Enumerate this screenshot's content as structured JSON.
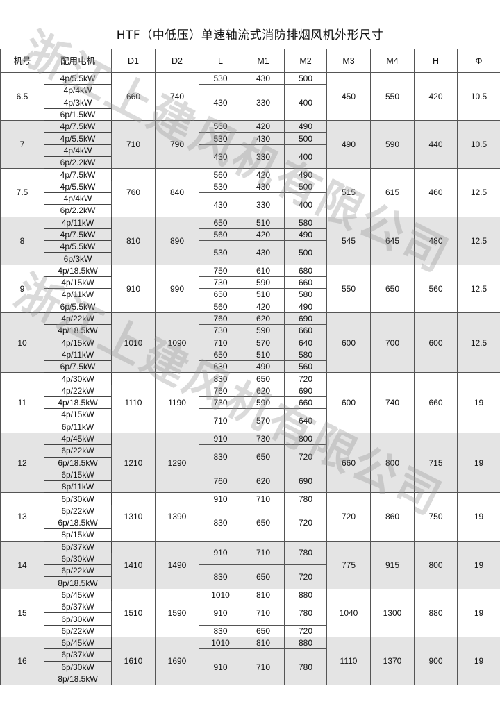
{
  "title": "HTF（中低压）单速轴流式消防排烟风机外形尺寸",
  "watermark": "浙江上建风机有限公司",
  "colors": {
    "shade": "#e4e4e4",
    "border": "#555555"
  },
  "headers": [
    "机号",
    "配用电机",
    "D1",
    "D2",
    "L",
    "M1",
    "M2",
    "M3",
    "M4",
    "H",
    "Φ"
  ],
  "groups": [
    {
      "model": "6.5",
      "motors": [
        "4p/5.5kW",
        "4p/4kW",
        "4p/3kW",
        "6p/1.5kW"
      ],
      "D1": "660",
      "D2": "740",
      "dims": [
        {
          "span": 1,
          "L": "530",
          "M1": "430",
          "M2": "500"
        },
        {
          "span": 3,
          "L": "430",
          "M1": "330",
          "M2": "400"
        }
      ],
      "M3": "450",
      "M4": "550",
      "H": "420",
      "phi": "10.5"
    },
    {
      "model": "7",
      "motors": [
        "4p/7.5kW",
        "4p/5.5kW",
        "4p/4kW",
        "6p/2.2kW"
      ],
      "D1": "710",
      "D2": "790",
      "dims": [
        {
          "span": 1,
          "L": "560",
          "M1": "420",
          "M2": "490"
        },
        {
          "span": 1,
          "L": "530",
          "M1": "430",
          "M2": "500"
        },
        {
          "span": 2,
          "L": "430",
          "M1": "330",
          "M2": "400"
        }
      ],
      "M3": "490",
      "M4": "590",
      "H": "440",
      "phi": "10.5"
    },
    {
      "model": "7.5",
      "motors": [
        "4p/7.5kW",
        "4p/5.5kW",
        "4p/4kW",
        "6p/2.2kW"
      ],
      "D1": "760",
      "D2": "840",
      "dims": [
        {
          "span": 1,
          "L": "560",
          "M1": "420",
          "M2": "490"
        },
        {
          "span": 1,
          "L": "530",
          "M1": "430",
          "M2": "500"
        },
        {
          "span": 2,
          "L": "430",
          "M1": "330",
          "M2": "400"
        }
      ],
      "M3": "515",
      "M4": "615",
      "H": "460",
      "phi": "12.5"
    },
    {
      "model": "8",
      "motors": [
        "4p/11kW",
        "4p/7.5kW",
        "4p/5.5kW",
        "6p/3kW"
      ],
      "D1": "810",
      "D2": "890",
      "dims": [
        {
          "span": 1,
          "L": "650",
          "M1": "510",
          "M2": "580"
        },
        {
          "span": 1,
          "L": "560",
          "M1": "420",
          "M2": "490"
        },
        {
          "span": 2,
          "L": "530",
          "M1": "430",
          "M2": "500"
        }
      ],
      "M3": "545",
      "M4": "645",
      "H": "480",
      "phi": "12.5"
    },
    {
      "model": "9",
      "motors": [
        "4p/18.5kW",
        "4p/15kW",
        "4p/11kW",
        "6p/5.5kW"
      ],
      "D1": "910",
      "D2": "990",
      "dims": [
        {
          "span": 1,
          "L": "750",
          "M1": "610",
          "M2": "680"
        },
        {
          "span": 1,
          "L": "730",
          "M1": "590",
          "M2": "660"
        },
        {
          "span": 1,
          "L": "650",
          "M1": "510",
          "M2": "580"
        },
        {
          "span": 1,
          "L": "560",
          "M1": "420",
          "M2": "490"
        }
      ],
      "M3": "550",
      "M4": "650",
      "H": "560",
      "phi": "12.5"
    },
    {
      "model": "10",
      "motors": [
        "4p/22kW",
        "4p/18.5kW",
        "4p/15kW",
        "4p/11kW",
        "6p/7.5kW"
      ],
      "D1": "1010",
      "D2": "1090",
      "dims": [
        {
          "span": 1,
          "L": "760",
          "M1": "620",
          "M2": "690"
        },
        {
          "span": 1,
          "L": "730",
          "M1": "590",
          "M2": "660"
        },
        {
          "span": 1,
          "L": "710",
          "M1": "570",
          "M2": "640"
        },
        {
          "span": 1,
          "L": "650",
          "M1": "510",
          "M2": "580"
        },
        {
          "span": 1,
          "L": "630",
          "M1": "490",
          "M2": "560"
        }
      ],
      "M3": "600",
      "M4": "700",
      "H": "600",
      "phi": "12.5"
    },
    {
      "model": "11",
      "motors": [
        "4p/30kW",
        "4p/22kW",
        "4p/18.5kW",
        "4p/15kW",
        "6p/11kW"
      ],
      "D1": "1110",
      "D2": "1190",
      "dims": [
        {
          "span": 1,
          "L": "830",
          "M1": "650",
          "M2": "720"
        },
        {
          "span": 1,
          "L": "760",
          "M1": "620",
          "M2": "690"
        },
        {
          "span": 1,
          "L": "730",
          "M1": "590",
          "M2": "660"
        },
        {
          "span": 2,
          "L": "710",
          "M1": "570",
          "M2": "640"
        }
      ],
      "M3": "600",
      "M4": "740",
      "H": "660",
      "phi": "19"
    },
    {
      "model": "12",
      "motors": [
        "4p/45kW",
        "6p/22kW",
        "6p/18.5kW",
        "6p/15kW",
        "8p/11kW"
      ],
      "D1": "1210",
      "D2": "1290",
      "dims": [
        {
          "span": 1,
          "L": "910",
          "M1": "730",
          "M2": "800"
        },
        {
          "span": 2,
          "L": "830",
          "M1": "650",
          "M2": "720"
        },
        {
          "span": 2,
          "L": "760",
          "M1": "620",
          "M2": "690"
        }
      ],
      "M3": "660",
      "M4": "800",
      "H": "715",
      "phi": "19"
    },
    {
      "model": "13",
      "motors": [
        "6p/30kW",
        "6p/22kW",
        "6p/18.5kW",
        "8p/15kW"
      ],
      "D1": "1310",
      "D2": "1390",
      "dims": [
        {
          "span": 1,
          "L": "910",
          "M1": "710",
          "M2": "780"
        },
        {
          "span": 3,
          "L": "830",
          "M1": "650",
          "M2": "720"
        }
      ],
      "M3": "720",
      "M4": "860",
      "H": "750",
      "phi": "19"
    },
    {
      "model": "14",
      "motors": [
        "6p/37kW",
        "6p/30kW",
        "6p/22kW",
        "8p/18.5kW"
      ],
      "D1": "1410",
      "D2": "1490",
      "dims": [
        {
          "span": 2,
          "L": "910",
          "M1": "710",
          "M2": "780"
        },
        {
          "span": 2,
          "L": "830",
          "M1": "650",
          "M2": "720"
        }
      ],
      "M3": "775",
      "M4": "915",
      "H": "800",
      "phi": "19"
    },
    {
      "model": "15",
      "motors": [
        "6p/45kW",
        "6p/37kW",
        "6p/30kW",
        "6p/22kW"
      ],
      "D1": "1510",
      "D2": "1590",
      "dims": [
        {
          "span": 1,
          "L": "1010",
          "M1": "810",
          "M2": "880"
        },
        {
          "span": 2,
          "L": "910",
          "M1": "710",
          "M2": "780"
        },
        {
          "span": 1,
          "L": "830",
          "M1": "650",
          "M2": "720"
        }
      ],
      "M3": "1040",
      "M4": "1300",
      "H": "880",
      "phi": "19"
    },
    {
      "model": "16",
      "motors": [
        "6p/45kW",
        "6p/37kW",
        "6p/30kW",
        "8p/18.5kW"
      ],
      "D1": "1610",
      "D2": "1690",
      "dims": [
        {
          "span": 1,
          "L": "1010",
          "M1": "810",
          "M2": "880"
        },
        {
          "span": 3,
          "L": "910",
          "M1": "710",
          "M2": "780"
        }
      ],
      "M3": "1110",
      "M4": "1370",
      "H": "900",
      "phi": "19"
    }
  ]
}
